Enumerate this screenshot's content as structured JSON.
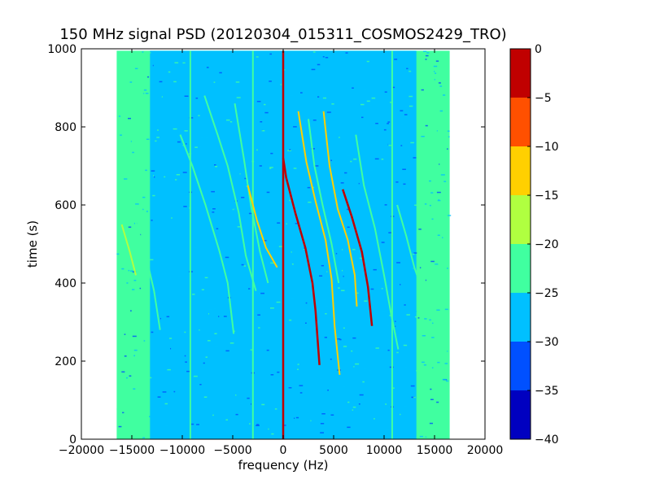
{
  "chart_data": {
    "type": "heatmap",
    "title": "150 MHz signal PSD (20120304_015311_COSMOS2429_TRO)",
    "xlabel": "frequency (Hz)",
    "ylabel": "time (s)",
    "xlim": [
      -20000,
      20000
    ],
    "ylim": [
      0,
      1000
    ],
    "x_ticks": [
      -20000,
      -15000,
      -10000,
      -5000,
      0,
      5000,
      10000,
      15000,
      20000
    ],
    "x_tick_labels": [
      "−20000",
      "−15000",
      "−10000",
      "−5000",
      "0",
      "5000",
      "10000",
      "15000",
      "20000"
    ],
    "y_ticks": [
      0,
      200,
      400,
      600,
      800,
      1000
    ],
    "y_tick_labels": [
      "0",
      "200",
      "400",
      "600",
      "800",
      "1000"
    ],
    "data_extent": {
      "freq_min": -16500,
      "freq_max": 16500,
      "time_min": 0,
      "time_max": 995
    },
    "grid": false,
    "colorbar": {
      "min": -40,
      "max": 0,
      "ticks": [
        0,
        -5,
        -10,
        -15,
        -20,
        -25,
        -30,
        -35,
        -40
      ],
      "tick_labels": [
        "0",
        "−5",
        "−10",
        "−15",
        "−20",
        "−25",
        "−30",
        "−35",
        "−40"
      ],
      "levels": [
        {
          "from": -40,
          "to": -35,
          "color": "#0000c0"
        },
        {
          "from": -35,
          "to": -30,
          "color": "#0050ff"
        },
        {
          "from": -30,
          "to": -25,
          "color": "#00c0ff"
        },
        {
          "from": -25,
          "to": -20,
          "color": "#40ffa0"
        },
        {
          "from": -20,
          "to": -15,
          "color": "#b0ff40"
        },
        {
          "from": -15,
          "to": -10,
          "color": "#ffd000"
        },
        {
          "from": -10,
          "to": -5,
          "color": "#ff5000"
        },
        {
          "from": -5,
          "to": 0,
          "color": "#c00000"
        }
      ]
    },
    "background_level": -27,
    "edge_band_level": -22,
    "vertical_lines": [
      {
        "freq": -9200,
        "level": -22
      },
      {
        "freq": -3000,
        "level": -22
      },
      {
        "freq": 0,
        "level": -3
      },
      {
        "freq": 10800,
        "level": -22
      }
    ],
    "traces": [
      {
        "level": -18,
        "points": [
          [
            -16000,
            550
          ],
          [
            -15200,
            480
          ],
          [
            -14600,
            420
          ]
        ]
      },
      {
        "level": -22,
        "points": [
          [
            -14800,
            570
          ],
          [
            -13600,
            470
          ],
          [
            -12800,
            380
          ],
          [
            -12200,
            280
          ]
        ]
      },
      {
        "level": -22,
        "points": [
          [
            -10200,
            780
          ],
          [
            -9000,
            700
          ],
          [
            -7700,
            600
          ],
          [
            -6300,
            480
          ],
          [
            -5500,
            400
          ],
          [
            -4900,
            270
          ]
        ]
      },
      {
        "level": -22,
        "points": [
          [
            -7800,
            880
          ],
          [
            -6500,
            780
          ],
          [
            -5500,
            700
          ],
          [
            -4400,
            580
          ],
          [
            -3700,
            470
          ],
          [
            -2700,
            380
          ]
        ]
      },
      {
        "level": -22,
        "points": [
          [
            -4800,
            860
          ],
          [
            -3900,
            720
          ],
          [
            -3200,
            600
          ],
          [
            -2300,
            480
          ],
          [
            -1500,
            400
          ]
        ]
      },
      {
        "level": -15,
        "points": [
          [
            -3500,
            650
          ],
          [
            -2600,
            560
          ],
          [
            -1700,
            490
          ],
          [
            -600,
            440
          ]
        ]
      },
      {
        "level": -3,
        "points": [
          [
            0,
            720
          ],
          [
            300,
            670
          ],
          [
            1200,
            580
          ],
          [
            2200,
            490
          ],
          [
            2900,
            400
          ],
          [
            3200,
            330
          ],
          [
            3600,
            190
          ]
        ]
      },
      {
        "level": -15,
        "points": [
          [
            1500,
            840
          ],
          [
            2300,
            710
          ],
          [
            3200,
            610
          ],
          [
            4200,
            510
          ],
          [
            4800,
            410
          ],
          [
            5100,
            290
          ],
          [
            5600,
            165
          ]
        ]
      },
      {
        "level": -3,
        "points": [
          [
            5900,
            640
          ],
          [
            6800,
            570
          ],
          [
            7800,
            480
          ],
          [
            8400,
            390
          ],
          [
            8800,
            290
          ]
        ]
      },
      {
        "level": -15,
        "points": [
          [
            4000,
            840
          ],
          [
            4600,
            700
          ],
          [
            5400,
            590
          ],
          [
            6400,
            510
          ],
          [
            7100,
            420
          ],
          [
            7300,
            340
          ]
        ]
      },
      {
        "level": -22,
        "points": [
          [
            2500,
            820
          ],
          [
            3100,
            700
          ],
          [
            3900,
            600
          ],
          [
            4800,
            500
          ],
          [
            5500,
            400
          ]
        ]
      },
      {
        "level": -22,
        "points": [
          [
            7200,
            780
          ],
          [
            8000,
            650
          ],
          [
            9100,
            540
          ],
          [
            10000,
            420
          ],
          [
            10700,
            320
          ],
          [
            11400,
            230
          ]
        ]
      },
      {
        "level": -22,
        "points": [
          [
            11300,
            600
          ],
          [
            12200,
            520
          ],
          [
            13000,
            440
          ],
          [
            13800,
            380
          ]
        ]
      }
    ]
  }
}
